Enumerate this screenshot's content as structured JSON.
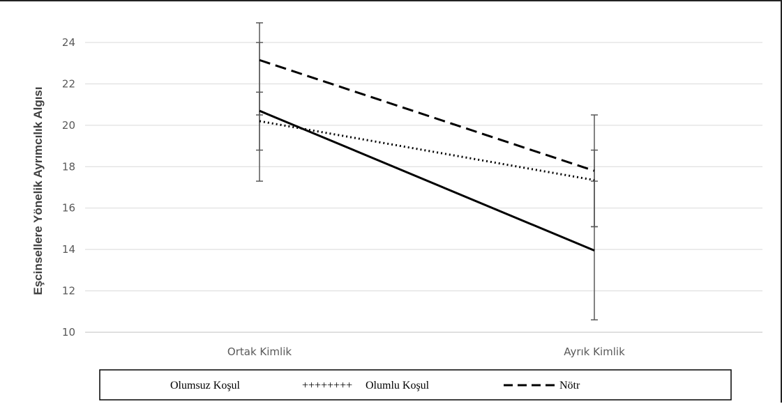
{
  "chart_data": {
    "type": "line",
    "title": "",
    "xlabel": "",
    "ylabel": "Eşcinsellere Yönelik Ayrımcılık Algısı",
    "categories": [
      "Ortak Kimlik",
      "Ayrık Kimlik"
    ],
    "ylim": [
      10,
      24
    ],
    "yticks": [
      10,
      12,
      14,
      16,
      18,
      20,
      22,
      24
    ],
    "grid": true,
    "legend_position": "bottom",
    "series": [
      {
        "name": "Olumsuz Koşul",
        "values": [
          20.7,
          13.95
        ],
        "error_low": [
          17.3,
          10.6
        ],
        "error_high": [
          24.0,
          17.3
        ],
        "style": "solid"
      },
      {
        "name": "Olumlu Koşul",
        "values": [
          20.2,
          17.35
        ],
        "error_low": [
          18.8,
          15.1
        ],
        "error_high": [
          21.6,
          18.8
        ],
        "style": "dotted"
      },
      {
        "name": "Nötr",
        "values": [
          23.15,
          17.8
        ],
        "error_low": [
          20.5,
          15.1
        ],
        "error_high": [
          24.95,
          20.5
        ],
        "style": "dashed"
      }
    ],
    "legend_marker_olumlu": "++++++++",
    "colors": {
      "line": "#000000",
      "error": "#595959",
      "grid": "#d9d9d9"
    }
  }
}
